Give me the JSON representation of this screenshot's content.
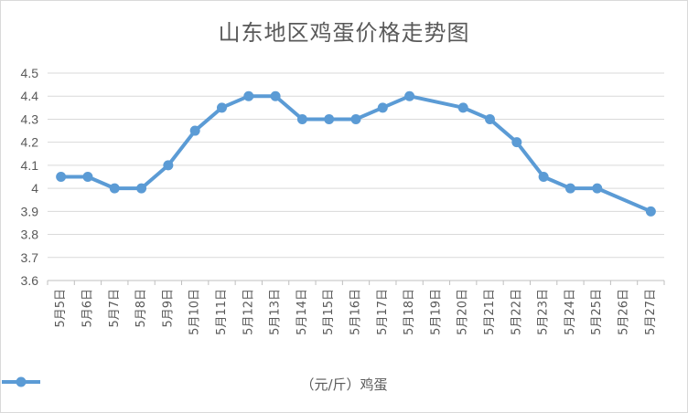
{
  "chart_data": {
    "type": "line",
    "title": "山东地区鸡蛋价格走势图",
    "categories": [
      "5月5日",
      "5月6日",
      "5月7日",
      "5月8日",
      "5月9日",
      "5月10日",
      "5月11日",
      "5月12日",
      "5月13日",
      "5月14日",
      "5月15日",
      "5月16日",
      "5月17日",
      "5月18日",
      "5月19日",
      "5月20日",
      "5月21日",
      "5月22日",
      "5月23日",
      "5月24日",
      "5月25日",
      "5月26日",
      "5月27日"
    ],
    "series": [
      {
        "name": "（元/斤）鸡蛋",
        "values": [
          4.05,
          4.05,
          4.0,
          4.0,
          4.1,
          4.25,
          4.35,
          4.4,
          4.4,
          4.3,
          4.3,
          4.3,
          4.35,
          4.4,
          null,
          4.35,
          4.3,
          4.2,
          4.05,
          4.0,
          4.0,
          null,
          3.9
        ],
        "color": "#5b9bd5"
      }
    ],
    "ylim": [
      3.6,
      4.5
    ],
    "yticks": [
      "3.6",
      "3.7",
      "3.8",
      "3.9",
      "4",
      "4.1",
      "4.2",
      "4.3",
      "4.4",
      "4.5"
    ],
    "grid": true,
    "legend_position": "bottom",
    "xlabel": "",
    "ylabel": ""
  }
}
